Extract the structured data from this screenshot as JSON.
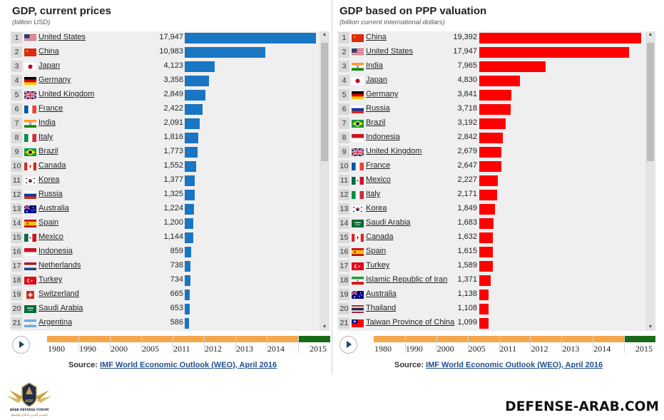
{
  "chart_data": [
    {
      "type": "bar",
      "orientation": "horizontal",
      "title": "GDP, current prices",
      "subtitle": "(billion USD)",
      "xlim": [
        0,
        17947
      ],
      "categories": [
        "United States",
        "China",
        "Japan",
        "Germany",
        "United Kingdom",
        "France",
        "India",
        "Italy",
        "Brazil",
        "Canada",
        "Korea",
        "Russia",
        "Australia",
        "Spain",
        "Mexico",
        "Indonesia",
        "Netherlands",
        "Turkey",
        "Switzerland",
        "Saudi Arabia",
        "Argentina"
      ],
      "values": [
        17947,
        10983,
        4123,
        3358,
        2849,
        2422,
        2091,
        1816,
        1773,
        1552,
        1377,
        1325,
        1224,
        1200,
        1144,
        859,
        738,
        734,
        665,
        653,
        586
      ],
      "labels": [
        "17,947",
        "10,983",
        "4,123",
        "3,358",
        "2,849",
        "2,422",
        "2,091",
        "1,816",
        "1,773",
        "1,552",
        "1,377",
        "1,325",
        "1,224",
        "1,200",
        "1,144",
        "859",
        "738",
        "734",
        "665",
        "653",
        "586"
      ],
      "flags": [
        "us",
        "cn",
        "jp",
        "de",
        "gb",
        "fr",
        "in",
        "it",
        "br",
        "ca",
        "kr",
        "ru",
        "au",
        "es",
        "mx",
        "id",
        "nl",
        "tr",
        "ch",
        "sa",
        "ar"
      ],
      "bar_color": "#1a75c2"
    },
    {
      "type": "bar",
      "orientation": "horizontal",
      "title": "GDP based on PPP valuation",
      "subtitle": "(billion current international dollars)",
      "xlim": [
        0,
        19392
      ],
      "categories": [
        "China",
        "United States",
        "India",
        "Japan",
        "Germany",
        "Russia",
        "Brazil",
        "Indonesia",
        "United Kingdom",
        "France",
        "Mexico",
        "Italy",
        "Korea",
        "Saudi Arabia",
        "Canada",
        "Spain",
        "Turkey",
        "Islamic Republic of Iran",
        "Australia",
        "Thailand",
        "Taiwan Province of China"
      ],
      "values": [
        19392,
        17947,
        7965,
        4830,
        3841,
        3718,
        3192,
        2842,
        2679,
        2647,
        2227,
        2171,
        1849,
        1683,
        1632,
        1615,
        1589,
        1371,
        1138,
        1108,
        1099
      ],
      "labels": [
        "19,392",
        "17,947",
        "7,965",
        "4,830",
        "3,841",
        "3,718",
        "3,192",
        "2,842",
        "2,679",
        "2,647",
        "2,227",
        "2,171",
        "1,849",
        "1,683",
        "1,632",
        "1,615",
        "1,589",
        "1,371",
        "1,138",
        "1,108",
        "1,099"
      ],
      "flags": [
        "cn",
        "us",
        "in",
        "jp",
        "de",
        "ru",
        "br",
        "id",
        "gb",
        "fr",
        "mx",
        "it",
        "kr",
        "sa",
        "ca",
        "es",
        "tr",
        "ir",
        "au",
        "th",
        "tw"
      ],
      "bar_color": "#ff0000"
    }
  ],
  "timeline": {
    "years": [
      "1980",
      "1990",
      "2000",
      "2005",
      "2011",
      "2012",
      "2013",
      "2014",
      "2015"
    ],
    "current": "2015",
    "color_past": "#f4a64a",
    "color_current": "#196b18"
  },
  "source": {
    "prefix": "Source: ",
    "link_text": "IMF World Economic Outlook (WEO), April 2016"
  },
  "watermark": "DEFENSE-ARAB.COM",
  "logo": {
    "initials": "ADF",
    "text": "ARAB DEFENSE FORUM",
    "arabic": "المنتدى العربي للدفاع والتسليح"
  }
}
